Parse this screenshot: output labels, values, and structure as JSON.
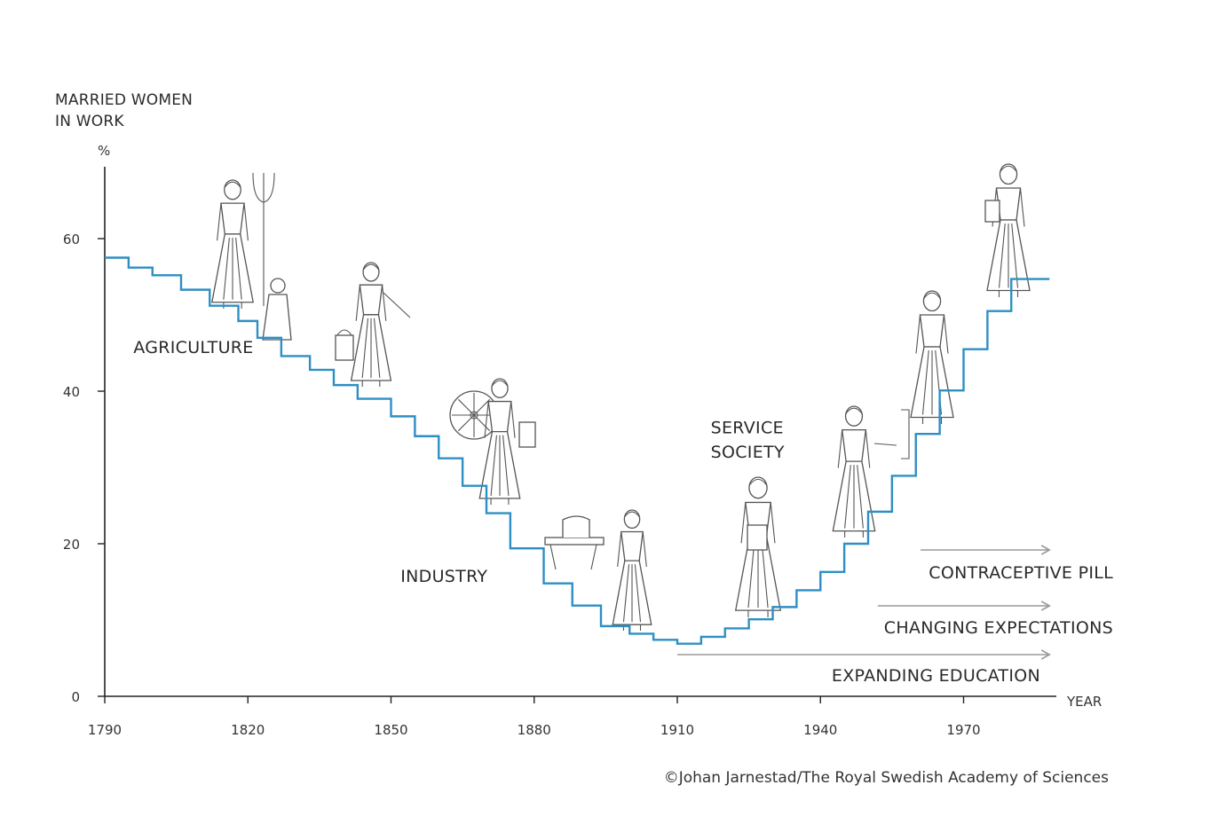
{
  "chart_data": {
    "type": "line",
    "style": "step",
    "y_axis_title": [
      "MARRIED WOMEN",
      "IN WORK"
    ],
    "y_unit": "%",
    "x_axis_title": "YEAR",
    "xlim": [
      1790,
      1988
    ],
    "ylim": [
      0,
      68
    ],
    "x_ticks": [
      1790,
      1820,
      1850,
      1880,
      1910,
      1940,
      1970
    ],
    "y_ticks": [
      0,
      20,
      40,
      60
    ],
    "grid": false,
    "line_color": "#2e8fc4",
    "series": [
      {
        "x": [
          1790,
          1795,
          1800,
          1806,
          1812,
          1818,
          1822,
          1827,
          1833,
          1838,
          1843,
          1850,
          1855,
          1860,
          1865,
          1870,
          1875,
          1882,
          1888,
          1894,
          1900,
          1905,
          1910,
          1915,
          1920,
          1925,
          1930,
          1935,
          1940,
          1945,
          1950,
          1955,
          1960,
          1965,
          1970,
          1975,
          1980,
          1985,
          1988
        ],
        "y": [
          57.5,
          56.2,
          55.2,
          53.3,
          51.2,
          49.2,
          47.0,
          44.6,
          42.8,
          40.8,
          39.0,
          36.7,
          34.1,
          31.2,
          27.6,
          24.0,
          19.4,
          14.8,
          11.9,
          9.2,
          8.2,
          7.4,
          6.9,
          7.8,
          8.9,
          10.1,
          11.7,
          13.9,
          16.3,
          20.0,
          24.2,
          28.9,
          34.4,
          40.1,
          45.5,
          50.5,
          54.7,
          54.7,
          54.7
        ]
      }
    ],
    "annotations": [
      {
        "text": "AGRICULTURE",
        "x": 1796,
        "y": 45
      },
      {
        "text": "INDUSTRY",
        "x": 1852,
        "y": 15
      },
      {
        "text": "SERVICE",
        "x": 1917,
        "y": 34.5
      },
      {
        "text": "SOCIETY",
        "x": 1917,
        "y": 31.3
      }
    ],
    "arrows": [
      {
        "text": "CONTRACEPTIVE PILL",
        "x_start": 1961,
        "x_end": 1988
      },
      {
        "text": "CHANGING EXPECTATIONS",
        "x_start": 1952,
        "x_end": 1988
      },
      {
        "text": "EXPANDING EDUCATION",
        "x_start": 1910,
        "x_end": 1988
      }
    ],
    "arrow_color": "#9a9a9a"
  },
  "credit": "©Johan Jarnestad/The Royal Swedish Academy of Sciences",
  "illustrations": [
    {
      "icon": "woman-with-pitchfork-icon",
      "x": 1819,
      "y": 57
    },
    {
      "icon": "child-sitting-icon",
      "x": 1828,
      "y": 49
    },
    {
      "icon": "woman-with-bucket-icon",
      "x": 1847,
      "y": 46
    },
    {
      "icon": "woman-with-spinning-wheel-icon",
      "x": 1873,
      "y": 31
    },
    {
      "icon": "sewing-machine-icon",
      "x": 1891,
      "y": 19
    },
    {
      "icon": "woman-in-apron-icon",
      "x": 1903,
      "y": 14
    },
    {
      "icon": "woman-with-book-icon",
      "x": 1926,
      "y": 20
    },
    {
      "icon": "woman-at-switchboard-icon",
      "x": 1944,
      "y": 27
    },
    {
      "icon": "woman-in-suit-icon",
      "x": 1963,
      "y": 44
    },
    {
      "icon": "woman-with-bag-icon",
      "x": 1981,
      "y": 62
    }
  ]
}
